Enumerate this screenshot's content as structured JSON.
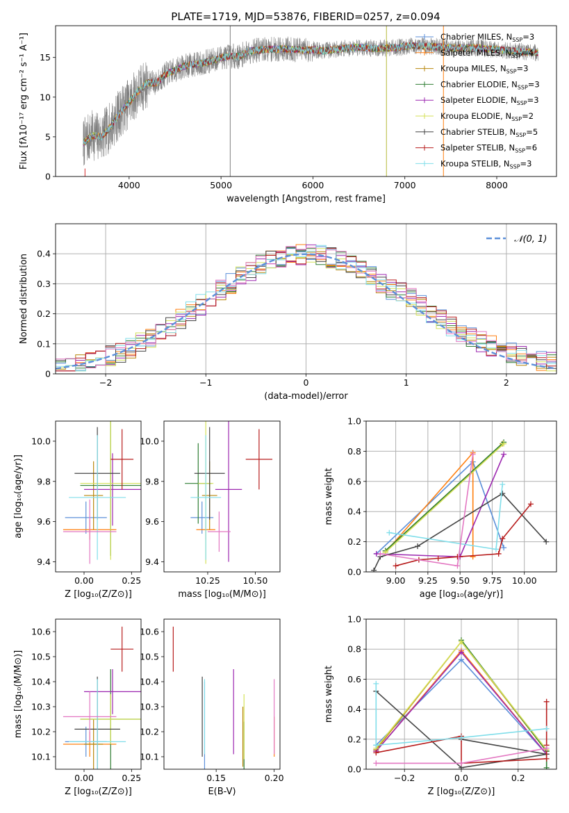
{
  "figure": {
    "title": "PLATE=1719, MJD=53876, FIBERID=0257, z=0.094"
  },
  "colors": {
    "gray_spectrum": "#808080",
    "grid": "#b0b0b0",
    "normal_curve": "#5b8fd9"
  },
  "chart_data": [
    {
      "id": "spectrum",
      "type": "line",
      "title": "PLATE=1719, MJD=53876, FIBERID=0257, z=0.094",
      "xlabel": "wavelength [Angstrom, rest frame]",
      "ylabel": "Flux [fλ10⁻¹⁷ erg cm⁻² s⁻¹ A⁻¹]",
      "xlim": [
        3200,
        8650
      ],
      "ylim": [
        0,
        19
      ],
      "xticks": [
        4000,
        5000,
        6000,
        7000,
        8000
      ],
      "yticks": [
        0,
        5,
        10,
        15
      ],
      "data_range": [
        3500,
        8450
      ],
      "continuum": [
        [
          3500,
          4.2
        ],
        [
          3600,
          5.2
        ],
        [
          3700,
          5.0
        ],
        [
          3800,
          6.3
        ],
        [
          3900,
          8.0
        ],
        [
          4000,
          9.3
        ],
        [
          4100,
          10.8
        ],
        [
          4200,
          11.8
        ],
        [
          4300,
          11.8
        ],
        [
          4400,
          12.9
        ],
        [
          4500,
          13.4
        ],
        [
          4600,
          13.9
        ],
        [
          4700,
          14.1
        ],
        [
          4800,
          14.3
        ],
        [
          4900,
          14.6
        ],
        [
          5000,
          15.0
        ],
        [
          5100,
          15.2
        ],
        [
          5200,
          15.1
        ],
        [
          5300,
          15.8
        ],
        [
          5400,
          15.9
        ],
        [
          5500,
          16.0
        ],
        [
          5600,
          16.0
        ],
        [
          5700,
          16.1
        ],
        [
          5800,
          16.0
        ],
        [
          5900,
          15.9
        ],
        [
          6000,
          16.0
        ],
        [
          6100,
          15.8
        ],
        [
          6200,
          16.0
        ],
        [
          6300,
          16.1
        ],
        [
          6400,
          16.2
        ],
        [
          6500,
          16.3
        ],
        [
          6600,
          16.2
        ],
        [
          6700,
          16.1
        ],
        [
          6800,
          16.2
        ],
        [
          6900,
          16.2
        ],
        [
          7000,
          16.4
        ],
        [
          7100,
          16.5
        ],
        [
          7200,
          16.4
        ],
        [
          7300,
          16.4
        ],
        [
          7400,
          16.3
        ],
        [
          7500,
          16.2
        ],
        [
          7600,
          16.2
        ],
        [
          7800,
          16.2
        ],
        [
          8000,
          16.0
        ],
        [
          8200,
          15.8
        ],
        [
          8450,
          15.6
        ]
      ],
      "spikes": [
        {
          "x": 5100,
          "y": 19,
          "color": "#808080"
        },
        {
          "x": 6800,
          "y": 19,
          "color": "#b5b83a"
        },
        {
          "x": 7420,
          "y": 19,
          "color": "#ff7f0e"
        },
        {
          "x": 3520,
          "y": 1,
          "color": "#d62728"
        }
      ],
      "legend_position": "right",
      "legend": [
        {
          "label": "Chabrier MILES, N",
          "sub": "SSP",
          "suffix": "=3",
          "color": "#5b8fd9"
        },
        {
          "label": "Salpeter MILES, N",
          "sub": "SSP",
          "suffix": "=4",
          "color": "#ff7f0e"
        },
        {
          "label": "Kroupa MILES, N",
          "sub": "SSP",
          "suffix": "=3",
          "color": "#b8860b"
        },
        {
          "label": "Chabrier ELODIE, N",
          "sub": "SSP",
          "suffix": "=3",
          "color": "#2e7d32"
        },
        {
          "label": "Salpeter ELODIE, N",
          "sub": "SSP",
          "suffix": "=3",
          "color": "#9c27b0"
        },
        {
          "label": "Kroupa ELODIE, N",
          "sub": "SSP",
          "suffix": "=2",
          "color": "#d4e157"
        },
        {
          "label": "Chabrier STELIB, N",
          "sub": "SSP",
          "suffix": "=5",
          "color": "#444444"
        },
        {
          "label": "Salpeter STELIB, N",
          "sub": "SSP",
          "suffix": "=6",
          "color": "#b71c1c"
        },
        {
          "label": "Kroupa STELIB, N",
          "sub": "SSP",
          "suffix": "=3",
          "color": "#80deea"
        }
      ]
    },
    {
      "id": "residuals",
      "type": "line",
      "xlabel": "(data-model)/error",
      "ylabel": "Normed distribution",
      "xlim": [
        -2.5,
        2.5
      ],
      "ylim": [
        0,
        0.5
      ],
      "xticks": [
        -2,
        -1,
        0,
        1,
        2
      ],
      "yticks": [
        0.0,
        0.1,
        0.2,
        0.3,
        0.4
      ],
      "grid": true,
      "legend_position": "top-right",
      "legend_label": "𝒩(0, 1)",
      "bin_width": 0.1,
      "series_colors": [
        "#5b8fd9",
        "#ff7f0e",
        "#b8860b",
        "#2e7d32",
        "#9c27b0",
        "#d4e157",
        "#444444",
        "#b71c1c",
        "#80deea",
        "#e377c2"
      ]
    },
    {
      "id": "age_vs_Z",
      "type": "scatter",
      "xlabel": "Z [log₁₀(Z/Z⊙)]",
      "ylabel": "age  [log₁₀(age/yr)]",
      "xlim": [
        -0.15,
        0.3
      ],
      "ylim": [
        9.35,
        10.1
      ],
      "xticks": [
        0.0,
        0.25
      ],
      "xtick_labels": [
        "0.00",
        "0.25"
      ],
      "yticks": [
        9.4,
        9.6,
        9.8,
        10.0
      ],
      "ytick_labels": [
        "9.4",
        "9.6",
        "9.8",
        "10.0"
      ],
      "points": [
        {
          "x": 0.01,
          "xerr": 0.11,
          "y": 9.62,
          "yerr": 0.08,
          "color": "#5b8fd9"
        },
        {
          "x": 0.03,
          "xerr": 0.14,
          "y": 9.56,
          "yerr": 0.05,
          "color": "#ff7f0e"
        },
        {
          "x": 0.05,
          "xerr": 0.05,
          "y": 9.73,
          "yerr": 0.17,
          "color": "#b8860b"
        },
        {
          "x": 0.14,
          "xerr": 0.16,
          "y": 9.78,
          "yerr": 0.35,
          "color": "#2e7d32"
        },
        {
          "x": 0.15,
          "xerr": 0.15,
          "y": 9.76,
          "yerr": 0.18,
          "color": "#9c27b0"
        },
        {
          "x": 0.14,
          "xerr": 0.16,
          "y": 9.79,
          "yerr": 0.38,
          "color": "#d4e157"
        },
        {
          "x": 0.07,
          "xerr": 0.12,
          "y": 9.84,
          "yerr": 0.23,
          "color": "#444444"
        },
        {
          "x": 0.2,
          "xerr": 0.06,
          "y": 9.91,
          "yerr": 0.15,
          "color": "#b71c1c"
        },
        {
          "x": 0.07,
          "xerr": 0.15,
          "y": 9.72,
          "yerr": 0.31,
          "color": "#80deea"
        },
        {
          "x": 0.03,
          "xerr": 0.14,
          "y": 9.55,
          "yerr": 0.16,
          "color": "#e377c2"
        }
      ]
    },
    {
      "id": "age_vs_mass",
      "type": "scatter",
      "xlabel": "mass [log₁₀(M/M⊙)]",
      "ylabel": "",
      "xlim": [
        10.02,
        10.63
      ],
      "ylim": [
        9.35,
        10.1
      ],
      "xticks": [
        10.25,
        10.5
      ],
      "xtick_labels": [
        "10.25",
        "10.50"
      ],
      "yticks": [
        9.4,
        9.6,
        9.8,
        10.0
      ],
      "ytick_labels": [
        "9.4",
        "9.6",
        "9.8",
        "10.0"
      ],
      "points": [
        {
          "x": 10.22,
          "xerr": 0.06,
          "y": 9.62,
          "yerr": 0.08,
          "color": "#5b8fd9"
        },
        {
          "x": 10.24,
          "xerr": 0.05,
          "y": 9.56,
          "yerr": 0.05,
          "color": "#ff7f0e"
        },
        {
          "x": 10.26,
          "xerr": 0.04,
          "y": 9.73,
          "yerr": 0.17,
          "color": "#b8860b"
        },
        {
          "x": 10.2,
          "xerr": 0.07,
          "y": 9.79,
          "yerr": 0.2,
          "color": "#2e7d32"
        },
        {
          "x": 10.36,
          "xerr": 0.07,
          "y": 9.76,
          "yerr": 0.36,
          "color": "#9c27b0"
        },
        {
          "x": 10.24,
          "xerr": 0.04,
          "y": 9.79,
          "yerr": 0.4,
          "color": "#d4e157"
        },
        {
          "x": 10.26,
          "xerr": 0.08,
          "y": 9.84,
          "yerr": 0.23,
          "color": "#444444"
        },
        {
          "x": 10.52,
          "xerr": 0.07,
          "y": 9.91,
          "yerr": 0.15,
          "color": "#b71c1c"
        },
        {
          "x": 10.24,
          "xerr": 0.08,
          "y": 9.72,
          "yerr": 0.31,
          "color": "#80deea"
        },
        {
          "x": 10.31,
          "xerr": 0.06,
          "y": 9.55,
          "yerr": 0.1,
          "color": "#e377c2"
        }
      ]
    },
    {
      "id": "weight_vs_age",
      "type": "line",
      "xlabel": "age  [log₁₀(age/yr)]",
      "ylabel": "mass weight",
      "xlim": [
        8.77,
        10.25
      ],
      "ylim": [
        0,
        1
      ],
      "xticks": [
        9.0,
        9.25,
        9.5,
        9.75,
        10.0
      ],
      "xtick_labels": [
        "9.00",
        "9.25",
        "9.50",
        "9.75",
        "10.00"
      ],
      "yticks": [
        0,
        0.2,
        0.4,
        0.6,
        0.8,
        1.0
      ],
      "ytick_labels": [
        "0.0",
        "0.2",
        "0.4",
        "0.6",
        "0.8",
        "1.0"
      ],
      "grid": true,
      "series": [
        {
          "color": "#5b8fd9",
          "x": [
            8.85,
            9.6,
            9.84
          ],
          "y": [
            0.12,
            0.73,
            0.16
          ]
        },
        {
          "color": "#ff7f0e",
          "x": [
            8.92,
            9.6,
            9.6
          ],
          "y": [
            0.13,
            0.79,
            0.1
          ]
        },
        {
          "color": "#b8860b",
          "x": [
            8.92,
            9.83
          ],
          "y": [
            0.14,
            0.85
          ]
        },
        {
          "color": "#2e7d32",
          "x": [
            8.92,
            9.84
          ],
          "y": [
            0.14,
            0.86
          ]
        },
        {
          "color": "#9c27b0",
          "x": [
            8.85,
            9.5,
            9.84
          ],
          "y": [
            0.12,
            0.1,
            0.78
          ]
        },
        {
          "color": "#d4e157",
          "x": [
            8.92,
            9.84
          ],
          "y": [
            0.13,
            0.85
          ]
        },
        {
          "color": "#444444",
          "x": [
            8.83,
            8.88,
            9.17,
            9.83,
            10.17
          ],
          "y": [
            0.01,
            0.1,
            0.17,
            0.52,
            0.2
          ]
        },
        {
          "color": "#b71c1c",
          "x": [
            9.0,
            9.18,
            9.33,
            9.48,
            9.8,
            9.83,
            10.05
          ],
          "y": [
            0.04,
            0.08,
            0.09,
            0.1,
            0.12,
            0.22,
            0.45
          ]
        },
        {
          "color": "#80deea",
          "x": [
            8.95,
            9.78,
            9.83
          ],
          "y": [
            0.26,
            0.15,
            0.58
          ]
        },
        {
          "color": "#e377c2",
          "x": [
            8.88,
            9.48,
            9.6
          ],
          "y": [
            0.12,
            0.04,
            0.78
          ]
        }
      ]
    },
    {
      "id": "mass_vs_Z",
      "type": "scatter",
      "xlabel": "Z [log₁₀(Z/Z⊙)]",
      "ylabel": "mass [log₁₀(M/M⊙)]",
      "xlim": [
        -0.15,
        0.3
      ],
      "ylim": [
        10.05,
        10.65
      ],
      "xticks": [
        0.0,
        0.25
      ],
      "xtick_labels": [
        "0.00",
        "0.25"
      ],
      "yticks": [
        10.1,
        10.2,
        10.3,
        10.4,
        10.5,
        10.6
      ],
      "ytick_labels": [
        "10.1",
        "10.2",
        "10.3",
        "10.4",
        "10.5",
        "10.6"
      ],
      "points": [
        {
          "x": 0.01,
          "xerr": 0.11,
          "y": 10.16,
          "yerr": 0.06,
          "color": "#5b8fd9"
        },
        {
          "x": 0.03,
          "xerr": 0.14,
          "y": 10.15,
          "yerr": 0.05,
          "color": "#ff7f0e"
        },
        {
          "x": 0.05,
          "xerr": 0.05,
          "y": 10.15,
          "yerr": 0.1,
          "color": "#b8860b"
        },
        {
          "x": 0.14,
          "xerr": 0.16,
          "y": 10.25,
          "yerr": 0.2,
          "color": "#2e7d32"
        },
        {
          "x": 0.15,
          "xerr": 0.15,
          "y": 10.36,
          "yerr": 0.09,
          "color": "#9c27b0"
        },
        {
          "x": 0.14,
          "xerr": 0.16,
          "y": 10.25,
          "yerr": 0.1,
          "color": "#d4e157"
        },
        {
          "x": 0.07,
          "xerr": 0.12,
          "y": 10.21,
          "yerr": 0.21,
          "color": "#444444"
        },
        {
          "x": 0.2,
          "xerr": 0.06,
          "y": 10.53,
          "yerr": 0.09,
          "color": "#b71c1c"
        },
        {
          "x": 0.07,
          "xerr": 0.15,
          "y": 10.16,
          "yerr": 0.25,
          "color": "#80deea"
        },
        {
          "x": 0.03,
          "xerr": 0.14,
          "y": 10.26,
          "yerr": 0.1,
          "color": "#e377c2"
        }
      ]
    },
    {
      "id": "mass_vs_ebv",
      "type": "scatter",
      "xlabel": "E(B-V)",
      "ylabel": "",
      "xlim": [
        0.105,
        0.205
      ],
      "ylim": [
        10.05,
        10.65
      ],
      "xticks": [
        0.15,
        0.2
      ],
      "xtick_labels": [
        "0.15",
        "0.20"
      ],
      "yticks": [
        10.1,
        10.2,
        10.3,
        10.4,
        10.5,
        10.6
      ],
      "ytick_labels": [
        "10.1",
        "10.2",
        "10.3",
        "10.4",
        "10.5",
        "10.6"
      ],
      "points": [
        {
          "x": 0.14,
          "xerr": 0,
          "y": 10.2,
          "yerr": 0.2,
          "color": "#5b8fd9"
        },
        {
          "x": 0.2,
          "xerr": 0,
          "y": 10.18,
          "yerr": 0.08,
          "color": "#ff7f0e"
        },
        {
          "x": 0.173,
          "xerr": 0,
          "y": 10.18,
          "yerr": 0.12,
          "color": "#b8860b"
        },
        {
          "x": 0.174,
          "xerr": 0,
          "y": 10.14,
          "yerr": 0.1,
          "color": "#2e7d32"
        },
        {
          "x": 0.165,
          "xerr": 0,
          "y": 10.28,
          "yerr": 0.17,
          "color": "#9c27b0"
        },
        {
          "x": 0.174,
          "xerr": 0,
          "y": 10.22,
          "yerr": 0.13,
          "color": "#d4e157"
        },
        {
          "x": 0.138,
          "xerr": 0,
          "y": 10.26,
          "yerr": 0.16,
          "color": "#444444"
        },
        {
          "x": 0.113,
          "xerr": 0,
          "y": 10.53,
          "yerr": 0.09,
          "color": "#b71c1c"
        },
        {
          "x": 0.14,
          "xerr": 0,
          "y": 10.26,
          "yerr": 0.15,
          "color": "#80deea"
        },
        {
          "x": 0.2,
          "xerr": 0,
          "y": 10.26,
          "yerr": 0.15,
          "color": "#e377c2"
        }
      ]
    },
    {
      "id": "weight_vs_Z",
      "type": "line",
      "xlabel": "Z [log₁₀(Z/Z⊙)]",
      "ylabel": "mass weight",
      "xlim": [
        -0.335,
        0.335
      ],
      "ylim": [
        0,
        1
      ],
      "xticks": [
        -0.2,
        0.0,
        0.2
      ],
      "xtick_labels": [
        "−0.2",
        "0.0",
        "0.2"
      ],
      "yticks": [
        0,
        0.2,
        0.4,
        0.6,
        0.8,
        1.0
      ],
      "ytick_labels": [
        "0.0",
        "0.2",
        "0.4",
        "0.6",
        "0.8",
        "1.0"
      ],
      "grid": true,
      "series": [
        {
          "color": "#5b8fd9",
          "x": [
            -0.3,
            0.0,
            0.3
          ],
          "y": [
            0.16,
            0.73,
            0.1
          ]
        },
        {
          "color": "#ff7f0e",
          "x": [
            -0.3,
            0.0,
            0.3
          ],
          "y": [
            0.12,
            0.79,
            0.1
          ]
        },
        {
          "color": "#b8860b",
          "x": [
            -0.3,
            0.0,
            0.3
          ],
          "y": [
            0.13,
            0.85,
            0.12
          ]
        },
        {
          "color": "#2e7d32",
          "x": [
            0.0,
            0.3,
            0.3
          ],
          "y": [
            0.86,
            0.12,
            0.01
          ]
        },
        {
          "color": "#9c27b0",
          "x": [
            -0.3,
            0.0,
            0.3
          ],
          "y": [
            0.12,
            0.78,
            0.1
          ]
        },
        {
          "color": "#d4e157",
          "x": [
            -0.3,
            0.0,
            0.3
          ],
          "y": [
            0.14,
            0.85,
            0.13
          ]
        },
        {
          "color": "#444444",
          "x": [
            -0.3,
            0.0,
            0.3,
            0.0
          ],
          "y": [
            0.52,
            0.01,
            0.1,
            0.2
          ]
        },
        {
          "color": "#b71c1c",
          "x": [
            -0.3,
            0.0,
            0.0,
            0.3,
            0.3,
            0.3
          ],
          "y": [
            0.11,
            0.22,
            0.04,
            0.07,
            0.16,
            0.45
          ]
        },
        {
          "color": "#80deea",
          "x": [
            -0.3,
            -0.3,
            0.0,
            0.3
          ],
          "y": [
            0.57,
            0.16,
            0.21,
            0.27
          ]
        },
        {
          "color": "#e377c2",
          "x": [
            -0.3,
            0.0,
            0.3
          ],
          "y": [
            0.04,
            0.04,
            0.14
          ]
        }
      ]
    }
  ]
}
